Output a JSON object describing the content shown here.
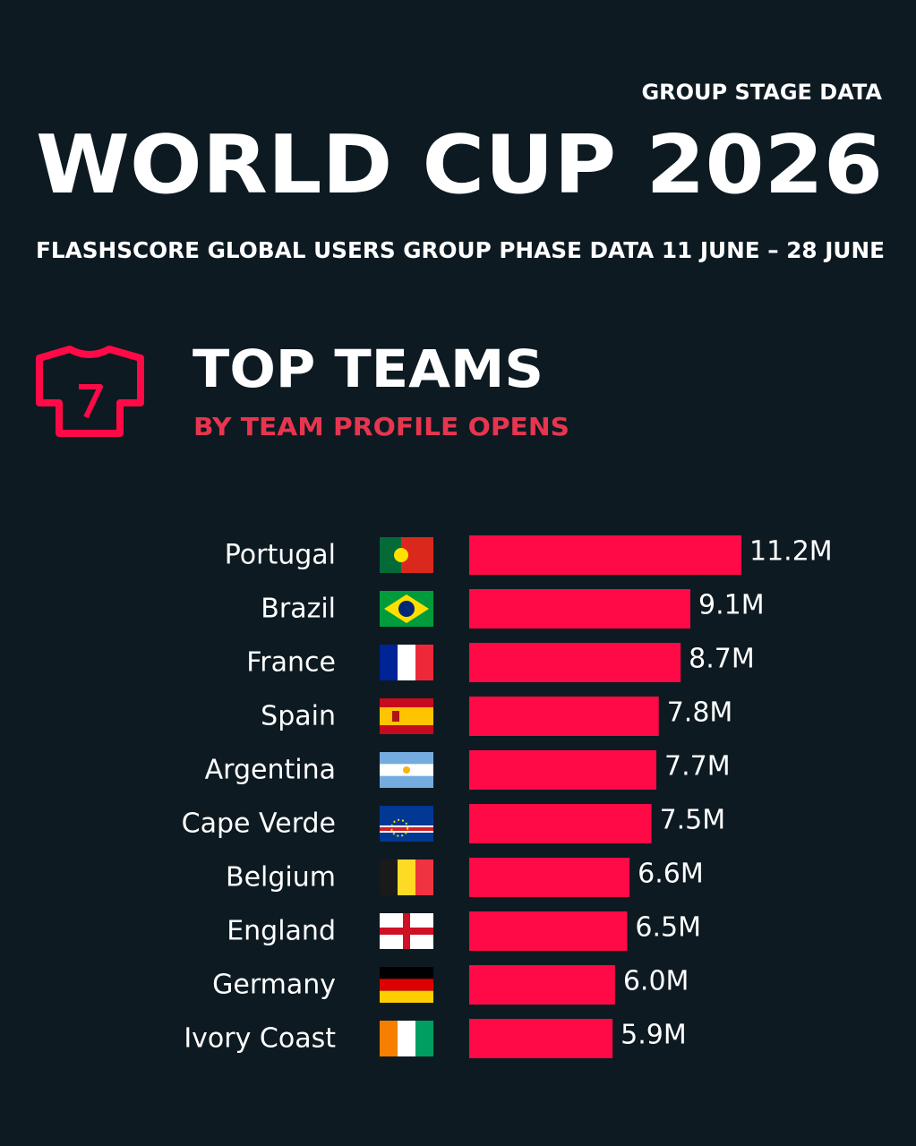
{
  "chart_data": {
    "type": "bar",
    "supertitle": "GROUP STAGE DATA",
    "title": "WORLD CUP 2026",
    "subtitle": "FLASHSCORE GLOBAL USERS GROUP PHASE DATA 11 JUNE – 28 JUNE",
    "section_title": "TOP TEAMS",
    "section_subtitle": "BY TEAM PROFILE OPENS",
    "categories": [
      "Portugal",
      "Brazil",
      "France",
      "Spain",
      "Argentina",
      "Cape Verde",
      "Belgium",
      "England",
      "Germany",
      "Ivory Coast"
    ],
    "values": [
      11.2,
      9.1,
      8.7,
      7.8,
      7.7,
      7.5,
      6.6,
      6.5,
      6.0,
      5.9
    ],
    "value_labels": [
      "11.2M",
      "9.1M",
      "8.7M",
      "7.8M",
      "7.7M",
      "7.5M",
      "6.6M",
      "6.5M",
      "6.0M",
      "5.9M"
    ],
    "color": "#ff0a47"
  }
}
